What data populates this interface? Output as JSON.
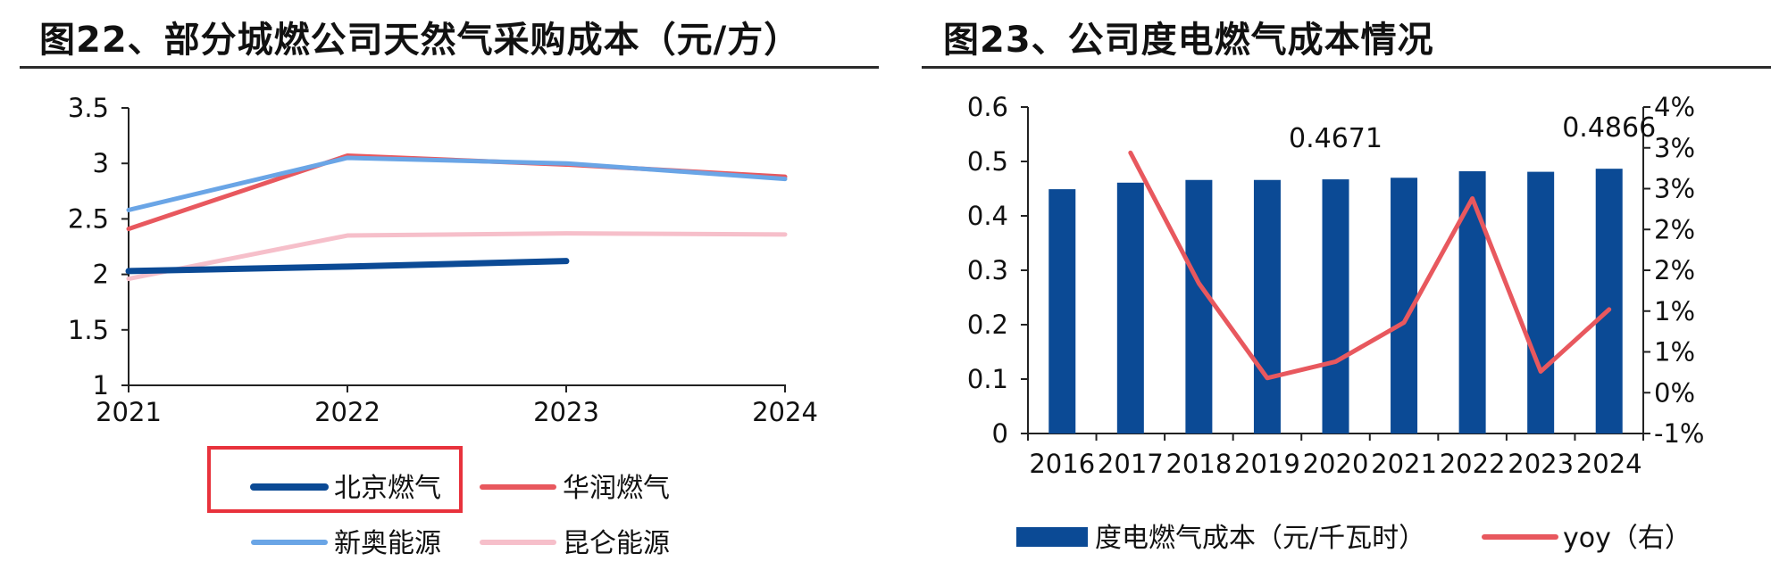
{
  "panel1": {
    "title": "图22、部分城燃公司天然气采购成本（元/方）"
  },
  "panel2": {
    "title": "图23、公司度电燃气成本情况"
  },
  "colors": {
    "beijing": "#0b4a95",
    "huarun": "#e8585e",
    "xinao": "#6aa5e6",
    "kunlun": "#f6bfca",
    "bar": "#0b4a95",
    "yoy": "#e8585e",
    "highlight": "#e8323c",
    "axis": "#222222"
  },
  "chart_data": [
    {
      "type": "line",
      "title": "图22、部分城燃公司天然气采购成本（元/方）",
      "x": [
        "2021",
        "2022",
        "2023",
        "2024"
      ],
      "ylim": [
        1,
        3.5
      ],
      "yticks": [
        "1",
        "1.5",
        "2",
        "2.5",
        "3",
        "3.5"
      ],
      "grid": false,
      "legend_position": "bottom",
      "series": [
        {
          "name": "北京燃气",
          "values": [
            2.03,
            2.07,
            2.12,
            null
          ]
        },
        {
          "name": "华润燃气",
          "values": [
            2.41,
            3.07,
            2.99,
            2.88
          ]
        },
        {
          "name": "新奥能源",
          "values": [
            2.58,
            3.05,
            3.0,
            2.86
          ]
        },
        {
          "name": "昆仑能源",
          "values": [
            1.96,
            2.35,
            2.37,
            2.36
          ]
        }
      ],
      "legend": [
        "北京燃气",
        "华润燃气",
        "新奥能源",
        "昆仑能源"
      ],
      "highlighted_legend": "北京燃气"
    },
    {
      "type": "bar",
      "title": "图23、公司度电燃气成本情况",
      "categories": [
        "2016",
        "2017",
        "2018",
        "2019",
        "2020",
        "2021",
        "2022",
        "2023",
        "2024"
      ],
      "ylim": [
        0,
        0.6
      ],
      "yticks": [
        "0",
        "0.1",
        "0.2",
        "0.3",
        "0.4",
        "0.5",
        "0.6"
      ],
      "y2lim": [
        -1,
        4
      ],
      "y2ticks": [
        "-1%",
        "0%",
        "1%",
        "1%",
        "2%",
        "2%",
        "3%",
        "3%",
        "4%"
      ],
      "grid": false,
      "legend_position": "bottom",
      "series": [
        {
          "name": "度电燃气成本（元/千瓦时）",
          "type": "bar",
          "axis": "left",
          "values": [
            0.449,
            0.461,
            0.466,
            0.466,
            0.4671,
            0.47,
            0.482,
            0.481,
            0.4866
          ]
        },
        {
          "name": "yoy（右）",
          "type": "line",
          "axis": "right",
          "values": [
            null,
            3.3,
            1.3,
            -0.15,
            0.1,
            0.7,
            2.6,
            -0.05,
            0.9
          ]
        }
      ],
      "annotations": [
        {
          "category": "2020",
          "text": "0.4671"
        },
        {
          "category": "2024",
          "text": "0.4866"
        }
      ]
    }
  ]
}
